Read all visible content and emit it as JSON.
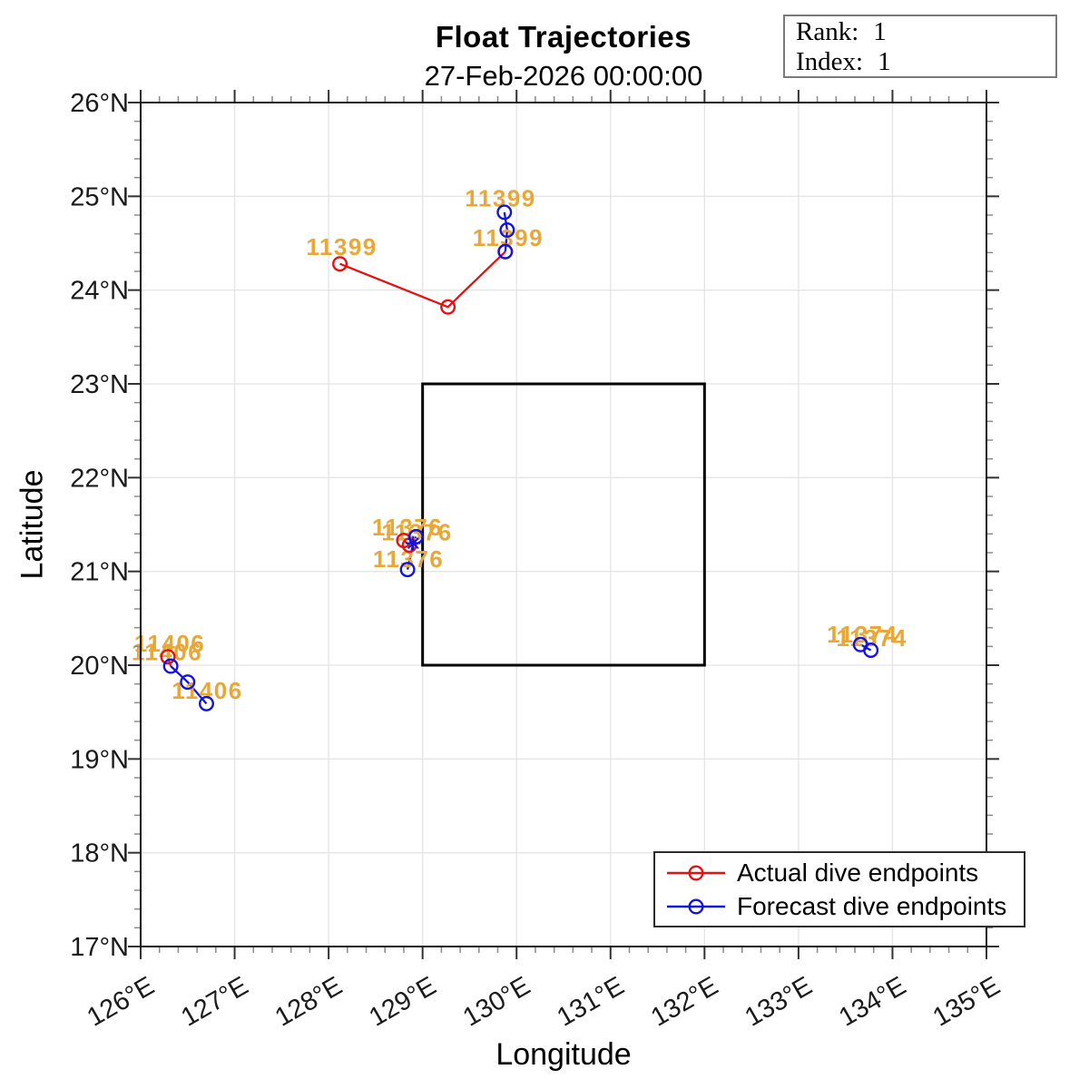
{
  "title": "Float Trajectories",
  "subtitle": "27-Feb-2026 00:00:00",
  "info_box": {
    "rank_label": "Rank:",
    "rank_value": "1",
    "index_label": "Index:",
    "index_value": "1"
  },
  "legend": {
    "location": "southeast",
    "items": [
      {
        "label": "Actual dive endpoints",
        "color": "#E01414",
        "marker": "circle"
      },
      {
        "label": "Forecast dive endpoints",
        "color": "#1414E0",
        "marker": "circle"
      }
    ]
  },
  "chart_data": {
    "type": "line",
    "title": "Float Trajectories",
    "subtitle": "27-Feb-2026 00:00:00",
    "xlabel": "Longitude",
    "ylabel": "Latitude",
    "xlim": [
      126,
      135
    ],
    "ylim": [
      17,
      26
    ],
    "grid": true,
    "minor_tick_step": 0.2,
    "xticks": [
      126,
      127,
      128,
      129,
      130,
      131,
      132,
      133,
      134,
      135
    ],
    "yticks": [
      17,
      18,
      19,
      20,
      21,
      22,
      23,
      24,
      25,
      26
    ],
    "xtick_labels": [
      "126°E",
      "127°E",
      "128°E",
      "129°E",
      "130°E",
      "131°E",
      "132°E",
      "133°E",
      "134°E",
      "135°E"
    ],
    "ytick_labels": [
      "17°N",
      "18°N",
      "19°N",
      "20°N",
      "21°N",
      "22°N",
      "23°N",
      "24°N",
      "25°N",
      "26°N"
    ],
    "colors": {
      "actual": "#E01414",
      "forecast": "#1414E0",
      "label": "#E8A838",
      "grid": "#E4E4E4",
      "box": "#000000",
      "axis": "#1a1a1a"
    },
    "box_region": {
      "lon": [
        129,
        132
      ],
      "lat": [
        20,
        23
      ]
    },
    "floats": [
      {
        "id": "11399",
        "actual": [
          [
            128.12,
            24.28
          ],
          [
            129.27,
            23.82
          ],
          [
            129.88,
            24.41
          ]
        ],
        "forecast": [
          [
            129.87,
            24.83
          ],
          [
            129.9,
            24.64
          ],
          [
            129.88,
            24.41
          ]
        ],
        "labels": [
          {
            "text": "11399",
            "lon": 128.14,
            "lat": 24.46
          },
          {
            "text": "11399",
            "lon": 129.83,
            "lat": 24.98
          },
          {
            "text": "11399",
            "lon": 129.91,
            "lat": 24.56
          }
        ]
      },
      {
        "id": "11376",
        "actual": [
          [
            128.8,
            21.33
          ],
          [
            128.86,
            21.28
          ]
        ],
        "forecast": [
          [
            128.93,
            21.37
          ],
          [
            128.9,
            21.3
          ],
          [
            128.84,
            21.02
          ]
        ],
        "forecast_markers": [
          "circle",
          "asterisk",
          "circle"
        ],
        "labels": [
          {
            "text": "11376",
            "lon": 128.84,
            "lat": 21.47
          },
          {
            "text": "11376",
            "lon": 128.94,
            "lat": 21.42
          },
          {
            "text": "11376",
            "lon": 128.85,
            "lat": 21.13
          }
        ]
      },
      {
        "id": "11406",
        "actual": [
          [
            126.29,
            20.09
          ],
          [
            126.32,
            19.99
          ]
        ],
        "actual_markers": [
          "circle",
          "none"
        ],
        "forecast": [
          [
            126.32,
            19.99
          ],
          [
            126.5,
            19.82
          ],
          [
            126.7,
            19.59
          ]
        ],
        "labels": [
          {
            "text": "11406",
            "lon": 126.31,
            "lat": 20.23
          },
          {
            "text": "11406",
            "lon": 126.28,
            "lat": 20.14
          },
          {
            "text": "11406",
            "lon": 126.71,
            "lat": 19.73
          }
        ]
      },
      {
        "id": "11374",
        "actual": [],
        "forecast": [
          [
            133.66,
            20.22
          ],
          [
            133.77,
            20.16
          ]
        ],
        "labels": [
          {
            "text": "11374",
            "lon": 133.68,
            "lat": 20.33
          },
          {
            "text": "11374",
            "lon": 133.78,
            "lat": 20.29
          }
        ]
      }
    ]
  }
}
